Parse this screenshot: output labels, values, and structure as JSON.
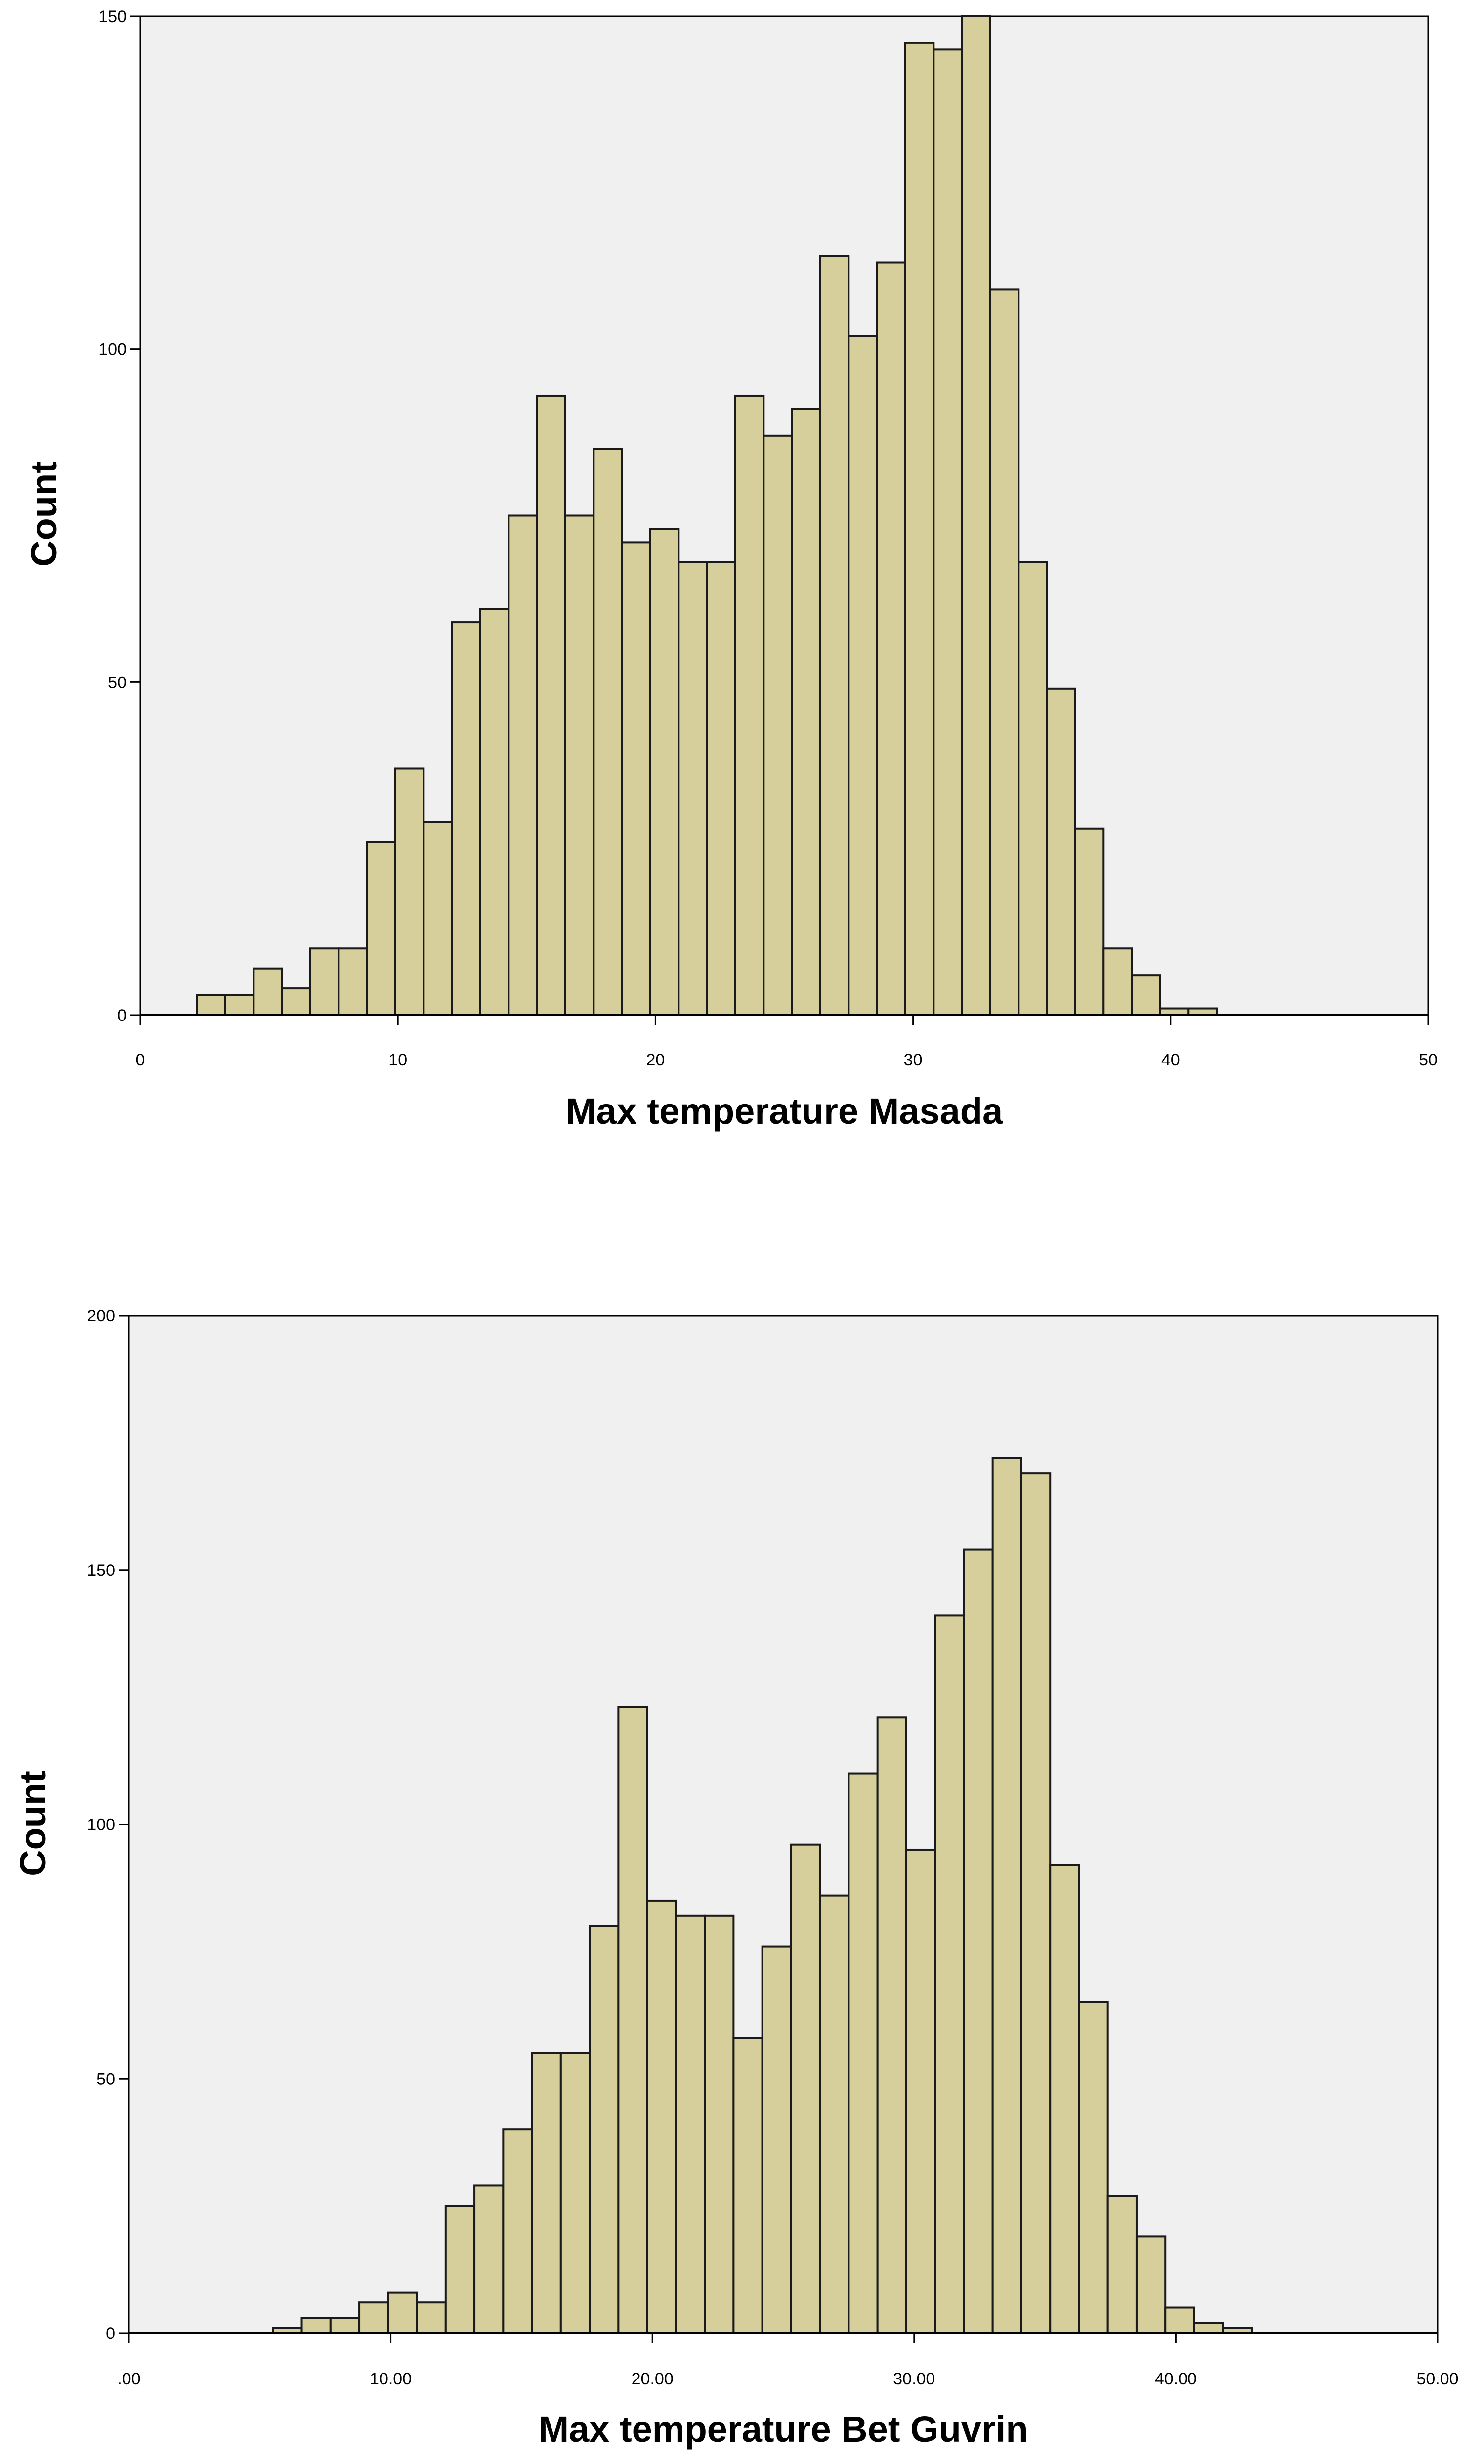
{
  "chart_data": [
    {
      "type": "bar",
      "title": "",
      "xlabel": "Max temperature  Masada",
      "ylabel": "Count",
      "xlim": [
        0,
        50
      ],
      "ylim": [
        0,
        150
      ],
      "x_ticks": [
        "0",
        "10",
        "20",
        "30",
        "40",
        "50"
      ],
      "y_ticks": [
        "0",
        "50",
        "100",
        "150"
      ],
      "bin_width": 1.1,
      "bins": [
        {
          "x": 2.75,
          "count": 3
        },
        {
          "x": 3.85,
          "count": 3
        },
        {
          "x": 4.95,
          "count": 7
        },
        {
          "x": 6.05,
          "count": 4
        },
        {
          "x": 7.15,
          "count": 10
        },
        {
          "x": 8.25,
          "count": 10
        },
        {
          "x": 9.35,
          "count": 26
        },
        {
          "x": 10.45,
          "count": 37
        },
        {
          "x": 11.55,
          "count": 29
        },
        {
          "x": 12.65,
          "count": 59
        },
        {
          "x": 13.75,
          "count": 61
        },
        {
          "x": 14.85,
          "count": 75
        },
        {
          "x": 15.95,
          "count": 93
        },
        {
          "x": 17.05,
          "count": 75
        },
        {
          "x": 18.15,
          "count": 85
        },
        {
          "x": 19.25,
          "count": 71
        },
        {
          "x": 20.35,
          "count": 73
        },
        {
          "x": 21.45,
          "count": 68
        },
        {
          "x": 22.55,
          "count": 68
        },
        {
          "x": 23.65,
          "count": 93
        },
        {
          "x": 24.75,
          "count": 87
        },
        {
          "x": 25.85,
          "count": 91
        },
        {
          "x": 26.95,
          "count": 114
        },
        {
          "x": 28.05,
          "count": 102
        },
        {
          "x": 29.15,
          "count": 113
        },
        {
          "x": 30.25,
          "count": 146
        },
        {
          "x": 31.35,
          "count": 145
        },
        {
          "x": 32.45,
          "count": 150
        },
        {
          "x": 33.55,
          "count": 109
        },
        {
          "x": 34.65,
          "count": 68
        },
        {
          "x": 35.75,
          "count": 49
        },
        {
          "x": 36.85,
          "count": 28
        },
        {
          "x": 37.95,
          "count": 10
        },
        {
          "x": 39.05,
          "count": 6
        },
        {
          "x": 40.15,
          "count": 1
        },
        {
          "x": 41.25,
          "count": 1
        }
      ],
      "grid": false,
      "bar_color": "#d6cf9b",
      "bar_edge_color": "#1a1a1a",
      "plot_background": "#f0f0f0"
    },
    {
      "type": "bar",
      "title": "",
      "xlabel": "Max temperature  Bet Guvrin",
      "ylabel": "Count",
      "xlim": [
        0,
        50
      ],
      "ylim": [
        0,
        200
      ],
      "x_ticks": [
        ".00",
        "10.00",
        "20.00",
        "30.00",
        "40.00",
        "50.00"
      ],
      "y_ticks": [
        "0",
        "50",
        "100",
        "150",
        "200"
      ],
      "bin_width": 1.1,
      "bins": [
        {
          "x": 6.05,
          "count": 1
        },
        {
          "x": 7.15,
          "count": 3
        },
        {
          "x": 8.25,
          "count": 3
        },
        {
          "x": 9.35,
          "count": 6
        },
        {
          "x": 10.45,
          "count": 8
        },
        {
          "x": 11.55,
          "count": 6
        },
        {
          "x": 12.65,
          "count": 25
        },
        {
          "x": 13.75,
          "count": 29
        },
        {
          "x": 14.85,
          "count": 40
        },
        {
          "x": 15.95,
          "count": 55
        },
        {
          "x": 17.05,
          "count": 55
        },
        {
          "x": 18.15,
          "count": 80
        },
        {
          "x": 19.25,
          "count": 123
        },
        {
          "x": 20.35,
          "count": 85
        },
        {
          "x": 21.45,
          "count": 82
        },
        {
          "x": 22.55,
          "count": 82
        },
        {
          "x": 23.65,
          "count": 58
        },
        {
          "x": 24.75,
          "count": 76
        },
        {
          "x": 25.85,
          "count": 96
        },
        {
          "x": 26.95,
          "count": 86
        },
        {
          "x": 28.05,
          "count": 110
        },
        {
          "x": 29.15,
          "count": 121
        },
        {
          "x": 30.25,
          "count": 95
        },
        {
          "x": 31.35,
          "count": 141
        },
        {
          "x": 32.45,
          "count": 154
        },
        {
          "x": 33.55,
          "count": 172
        },
        {
          "x": 34.65,
          "count": 169
        },
        {
          "x": 35.75,
          "count": 92
        },
        {
          "x": 36.85,
          "count": 65
        },
        {
          "x": 37.95,
          "count": 27
        },
        {
          "x": 39.05,
          "count": 19
        },
        {
          "x": 40.15,
          "count": 5
        },
        {
          "x": 41.25,
          "count": 2
        },
        {
          "x": 42.35,
          "count": 1
        }
      ],
      "grid": false,
      "bar_color": "#d6cf9b",
      "bar_edge_color": "#1a1a1a",
      "plot_background": "#f0f0f0"
    }
  ]
}
